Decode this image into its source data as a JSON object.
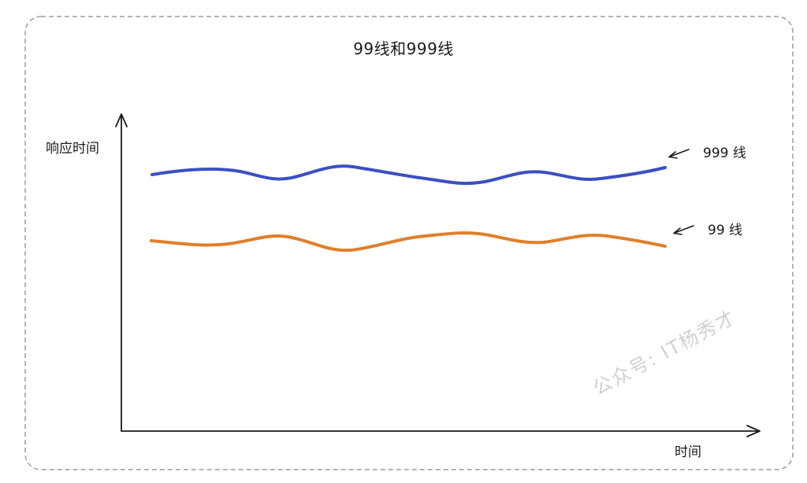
{
  "title": "99线和999线",
  "axes": {
    "y_label": "响应时间",
    "x_label": "时间"
  },
  "lines": [
    {
      "label": "999 线",
      "color": "#3b4fc4"
    },
    {
      "label": "99 线",
      "color": "#df7f2a"
    }
  ],
  "watermark": "公众号: IT杨秀才",
  "colors": {
    "frame": "#9a9a9a",
    "axis": "#1a1a1a",
    "text": "#1a1a1a"
  }
}
